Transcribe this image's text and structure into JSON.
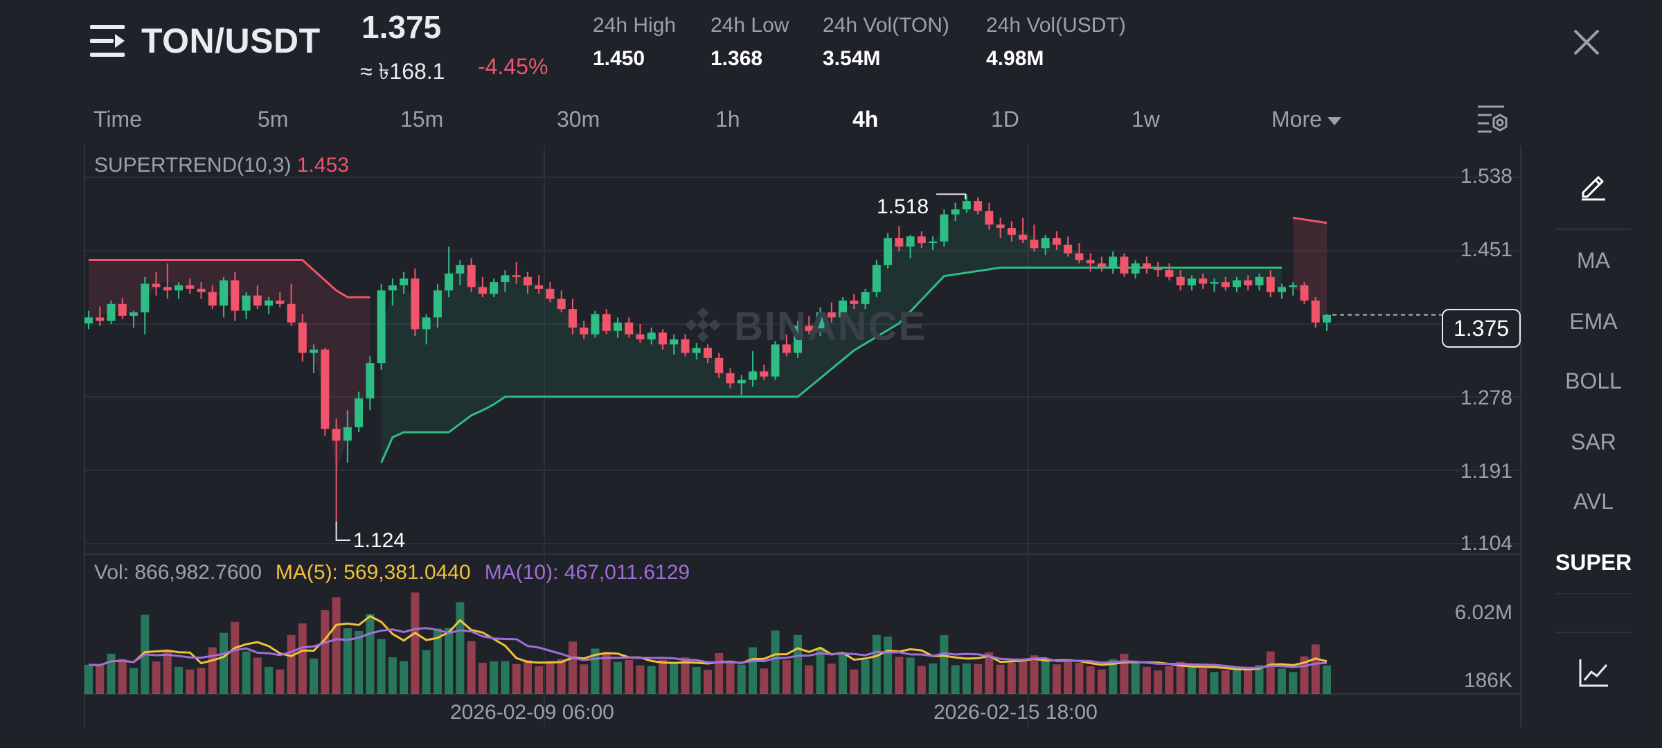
{
  "header": {
    "pair": "TON/USDT",
    "price": "1.375",
    "converted": "≈ ৳168.1",
    "change": "-4.45%",
    "stats": [
      {
        "label": "24h High",
        "value": "1.450"
      },
      {
        "label": "24h Low",
        "value": "1.368"
      },
      {
        "label": "24h Vol(TON)",
        "value": "3.54M"
      },
      {
        "label": "24h Vol(USDT)",
        "value": "4.98M"
      }
    ]
  },
  "timeframes": [
    "Time",
    "5m",
    "15m",
    "30m",
    "1h",
    "4h",
    "1D",
    "1w",
    "More"
  ],
  "active_timeframe": "4h",
  "indicators": [
    "MA",
    "EMA",
    "BOLL",
    "SAR",
    "AVL",
    "SUPER"
  ],
  "active_indicator": "SUPER",
  "chart": {
    "supertrend_label": "SUPERTREND(10,3)",
    "supertrend_value": "1.453",
    "y_ticks": [
      "1.538",
      "1.451",
      "1.278",
      "1.191",
      "1.104"
    ],
    "current_price": "1.375",
    "high_marker": "1.518",
    "low_marker": "1.124",
    "watermark": "BINANCE",
    "vol_label": "Vol: 866,982.7600",
    "ma5_label": "MA(5): 569,381.0440",
    "ma10_label": "MA(10): 467,011.6129",
    "vol_ticks": [
      "6.02M",
      "186K"
    ],
    "x_ticks": [
      "2026-02-09 06:00",
      "2026-02-15 18:00"
    ]
  },
  "colors": {
    "up": "#2ebd85",
    "down": "#f0556b",
    "bg": "#1f2229",
    "ma5": "#f0c13a",
    "ma10": "#a06ed8"
  },
  "icons": {
    "menu": "menu-icon",
    "close": "close-icon",
    "settings": "chart-settings-icon",
    "draw": "pencil-icon",
    "indicator": "line-chart-icon"
  },
  "chart_data": {
    "type": "candlestick",
    "ohlc": [
      [
        1.365,
        1.38,
        1.358,
        1.372
      ],
      [
        1.372,
        1.385,
        1.362,
        1.368
      ],
      [
        1.368,
        1.392,
        1.364,
        1.388
      ],
      [
        1.388,
        1.395,
        1.37,
        1.374
      ],
      [
        1.374,
        1.38,
        1.36,
        1.378
      ],
      [
        1.378,
        1.42,
        1.352,
        1.412
      ],
      [
        1.412,
        1.426,
        1.398,
        1.408
      ],
      [
        1.408,
        1.436,
        1.394,
        1.404
      ],
      [
        1.404,
        1.414,
        1.394,
        1.41
      ],
      [
        1.41,
        1.418,
        1.4,
        1.406
      ],
      [
        1.406,
        1.414,
        1.394,
        1.402
      ],
      [
        1.402,
        1.41,
        1.382,
        1.386
      ],
      [
        1.386,
        1.42,
        1.372,
        1.416
      ],
      [
        1.416,
        1.426,
        1.368,
        1.38
      ],
      [
        1.38,
        1.402,
        1.37,
        1.398
      ],
      [
        1.398,
        1.41,
        1.382,
        1.386
      ],
      [
        1.386,
        1.396,
        1.376,
        1.392
      ],
      [
        1.392,
        1.402,
        1.384,
        1.388
      ],
      [
        1.388,
        1.412,
        1.362,
        1.366
      ],
      [
        1.366,
        1.376,
        1.32,
        1.33
      ],
      [
        1.33,
        1.34,
        1.306,
        1.334
      ],
      [
        1.334,
        1.336,
        1.232,
        1.24
      ],
      [
        1.24,
        1.252,
        1.124,
        1.226
      ],
      [
        1.226,
        1.262,
        1.2,
        1.242
      ],
      [
        1.242,
        1.284,
        1.236,
        1.276
      ],
      [
        1.276,
        1.326,
        1.262,
        1.318
      ],
      [
        1.318,
        1.412,
        1.31,
        1.404
      ],
      [
        1.404,
        1.418,
        1.386,
        1.41
      ],
      [
        1.41,
        1.426,
        1.4,
        1.418
      ],
      [
        1.418,
        1.43,
        1.35,
        1.358
      ],
      [
        1.358,
        1.376,
        1.34,
        1.372
      ],
      [
        1.372,
        1.412,
        1.36,
        1.404
      ],
      [
        1.404,
        1.456,
        1.396,
        1.424
      ],
      [
        1.424,
        1.44,
        1.41,
        1.434
      ],
      [
        1.434,
        1.442,
        1.402,
        1.408
      ],
      [
        1.408,
        1.42,
        1.396,
        1.4
      ],
      [
        1.4,
        1.418,
        1.396,
        1.414
      ],
      [
        1.414,
        1.428,
        1.402,
        1.422
      ],
      [
        1.422,
        1.438,
        1.412,
        1.42
      ],
      [
        1.42,
        1.426,
        1.4,
        1.41
      ],
      [
        1.41,
        1.422,
        1.4,
        1.406
      ],
      [
        1.406,
        1.414,
        1.39,
        1.394
      ],
      [
        1.394,
        1.404,
        1.378,
        1.382
      ],
      [
        1.382,
        1.394,
        1.352,
        1.36
      ],
      [
        1.36,
        1.368,
        1.346,
        1.352
      ],
      [
        1.352,
        1.38,
        1.348,
        1.376
      ],
      [
        1.376,
        1.382,
        1.352,
        1.356
      ],
      [
        1.356,
        1.372,
        1.348,
        1.366
      ],
      [
        1.366,
        1.372,
        1.348,
        1.352
      ],
      [
        1.352,
        1.364,
        1.342,
        1.346
      ],
      [
        1.346,
        1.36,
        1.34,
        1.354
      ],
      [
        1.354,
        1.358,
        1.334,
        1.34
      ],
      [
        1.34,
        1.352,
        1.328,
        1.346
      ],
      [
        1.346,
        1.352,
        1.326,
        1.33
      ],
      [
        1.33,
        1.342,
        1.322,
        1.336
      ],
      [
        1.336,
        1.34,
        1.318,
        1.324
      ],
      [
        1.324,
        1.33,
        1.3,
        1.306
      ],
      [
        1.306,
        1.312,
        1.288,
        1.294
      ],
      [
        1.294,
        1.304,
        1.28,
        1.298
      ],
      [
        1.298,
        1.332,
        1.29,
        1.308
      ],
      [
        1.308,
        1.316,
        1.298,
        1.302
      ],
      [
        1.302,
        1.344,
        1.298,
        1.34
      ],
      [
        1.34,
        1.352,
        1.326,
        1.33
      ],
      [
        1.33,
        1.368,
        1.324,
        1.362
      ],
      [
        1.362,
        1.374,
        1.352,
        1.356
      ],
      [
        1.356,
        1.384,
        1.35,
        1.378
      ],
      [
        1.378,
        1.39,
        1.366,
        1.372
      ],
      [
        1.372,
        1.396,
        1.366,
        1.392
      ],
      [
        1.392,
        1.4,
        1.382,
        1.388
      ],
      [
        1.388,
        1.406,
        1.382,
        1.402
      ],
      [
        1.402,
        1.44,
        1.396,
        1.434
      ],
      [
        1.434,
        1.472,
        1.43,
        1.466
      ],
      [
        1.466,
        1.48,
        1.45,
        1.456
      ],
      [
        1.456,
        1.47,
        1.442,
        1.468
      ],
      [
        1.468,
        1.474,
        1.454,
        1.46
      ],
      [
        1.46,
        1.468,
        1.452,
        1.462
      ],
      [
        1.462,
        1.5,
        1.456,
        1.494
      ],
      [
        1.494,
        1.508,
        1.486,
        1.5
      ],
      [
        1.5,
        1.518,
        1.496,
        1.51
      ],
      [
        1.51,
        1.514,
        1.494,
        1.498
      ],
      [
        1.498,
        1.508,
        1.476,
        1.482
      ],
      [
        1.482,
        1.49,
        1.466,
        1.478
      ],
      [
        1.478,
        1.486,
        1.462,
        1.47
      ],
      [
        1.47,
        1.49,
        1.46,
        1.464
      ],
      [
        1.464,
        1.482,
        1.45,
        1.454
      ],
      [
        1.454,
        1.47,
        1.446,
        1.466
      ],
      [
        1.466,
        1.474,
        1.452,
        1.458
      ],
      [
        1.458,
        1.468,
        1.444,
        1.448
      ],
      [
        1.448,
        1.46,
        1.436,
        1.44
      ],
      [
        1.44,
        1.448,
        1.426,
        1.436
      ],
      [
        1.436,
        1.444,
        1.426,
        1.432
      ],
      [
        1.432,
        1.45,
        1.424,
        1.444
      ],
      [
        1.444,
        1.448,
        1.42,
        1.424
      ],
      [
        1.424,
        1.44,
        1.418,
        1.436
      ],
      [
        1.436,
        1.444,
        1.424,
        1.43
      ],
      [
        1.43,
        1.438,
        1.42,
        1.428
      ],
      [
        1.428,
        1.436,
        1.416,
        1.42
      ],
      [
        1.42,
        1.428,
        1.404,
        1.41
      ],
      [
        1.41,
        1.422,
        1.404,
        1.418
      ],
      [
        1.418,
        1.424,
        1.406,
        1.412
      ],
      [
        1.412,
        1.418,
        1.402,
        1.414
      ],
      [
        1.414,
        1.42,
        1.404,
        1.408
      ],
      [
        1.408,
        1.42,
        1.402,
        1.416
      ],
      [
        1.416,
        1.422,
        1.404,
        1.41
      ],
      [
        1.41,
        1.424,
        1.404,
        1.42
      ],
      [
        1.42,
        1.428,
        1.396,
        1.402
      ],
      [
        1.402,
        1.412,
        1.394,
        1.408
      ],
      [
        1.408,
        1.414,
        1.398,
        1.41
      ],
      [
        1.41,
        1.414,
        1.388,
        1.392
      ],
      [
        1.392,
        1.396,
        1.36,
        1.366
      ],
      [
        1.366,
        1.376,
        1.356,
        1.375
      ]
    ],
    "supertrend": "step line, red above price during downtrend, green below price during uptrend",
    "ylim": [
      1.104,
      1.538
    ],
    "volume_ylim": [
      0,
      6020000
    ]
  }
}
